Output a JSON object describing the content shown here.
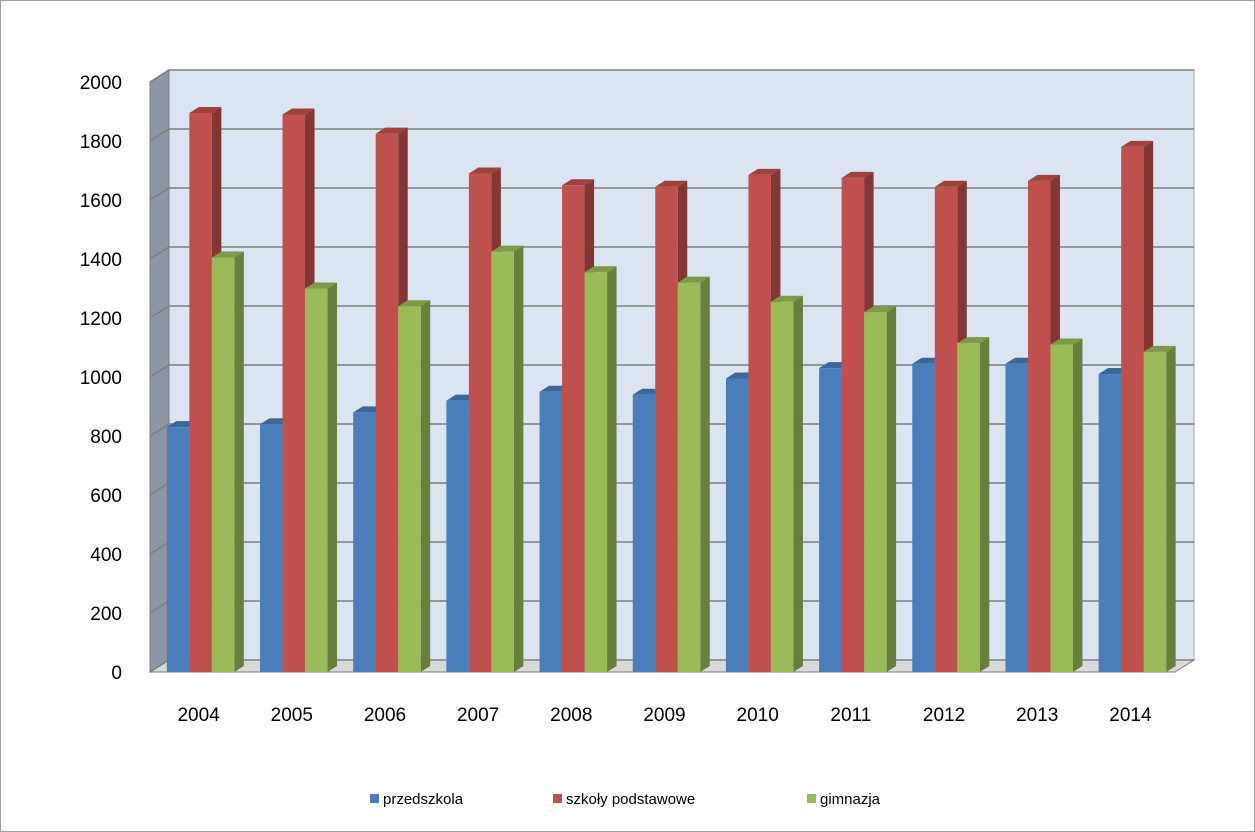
{
  "chart_data": {
    "type": "bar",
    "title": "",
    "xlabel": "",
    "ylabel": "",
    "categories": [
      "2004",
      "2005",
      "2006",
      "2007",
      "2008",
      "2009",
      "2010",
      "2011",
      "2012",
      "2013",
      "2014"
    ],
    "series": [
      {
        "name": "przedszkola",
        "color": "#4a7ebb",
        "values": [
          830,
          840,
          880,
          920,
          950,
          940,
          995,
          1030,
          1045,
          1045,
          1010
        ]
      },
      {
        "name": "szkoły podstawowe",
        "color": "#c0504d",
        "values": [
          1895,
          1890,
          1825,
          1690,
          1650,
          1645,
          1685,
          1675,
          1645,
          1665,
          1780
        ]
      },
      {
        "name": "gimnazja",
        "color": "#9bbb59",
        "values": [
          1405,
          1300,
          1240,
          1425,
          1355,
          1320,
          1255,
          1220,
          1115,
          1110,
          1085
        ]
      }
    ],
    "ylim": [
      0,
      2000
    ],
    "yticks": [
      0,
      200,
      400,
      600,
      800,
      1000,
      1200,
      1400,
      1600,
      1800,
      2000
    ],
    "grid": true,
    "legend_position": "bottom"
  }
}
